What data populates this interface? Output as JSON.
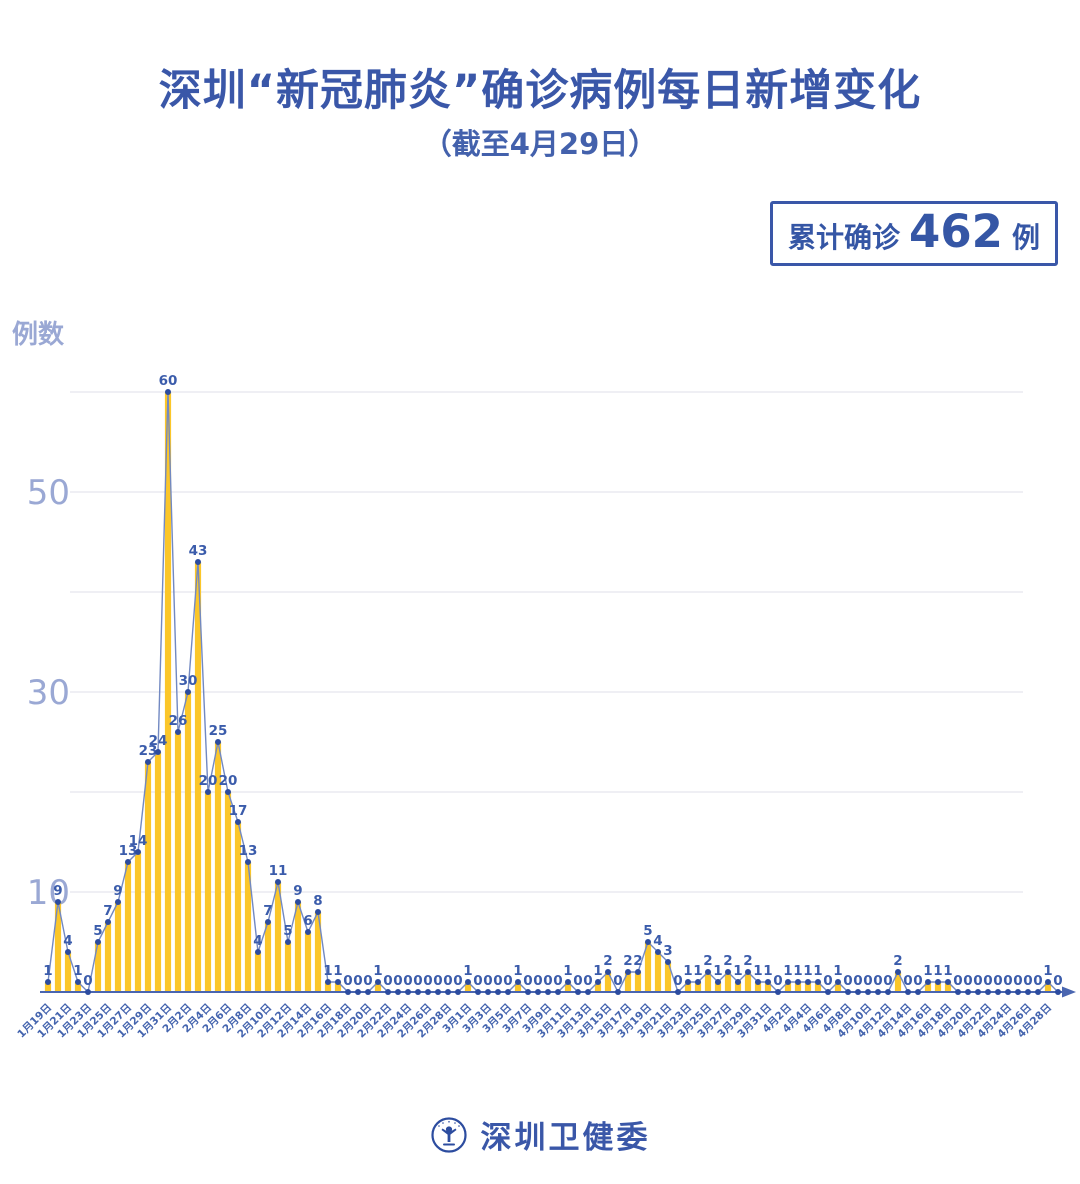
{
  "header": {
    "title": "深圳“新冠肺炎”确诊病例每日新增变化",
    "subtitle": "（截至4月29日）"
  },
  "summary_badge": {
    "prefix": "累计确诊",
    "value": "462",
    "suffix": "例"
  },
  "footer": {
    "org_name": "深圳卫健委",
    "logo": "shenzhen-health-commission-emblem"
  },
  "chart_data": {
    "type": "bar",
    "overlay": "line-with-points",
    "title": "深圳“新冠肺炎”确诊病例每日新增变化",
    "subtitle": "（截至4月29日）",
    "ylabel": "例数",
    "xlabel": "",
    "ylim": [
      0,
      60
    ],
    "grid": "horizontal",
    "gridline_values": [
      10,
      20,
      30,
      40,
      50,
      60
    ],
    "y_tick_labels": [
      10,
      30,
      50
    ],
    "x_start": "1月19日",
    "x_end": "4月29日",
    "x_label_interval": 2,
    "value_labels_shown": true,
    "x_tick_labels": [
      "1月19日",
      "1月21日",
      "1月23日",
      "1月25日",
      "1月27日",
      "1月29日",
      "1月31日",
      "2月2日",
      "2月4日",
      "2月6日",
      "2月8日",
      "2月10日",
      "2月12日",
      "2月14日",
      "2月16日",
      "2月18日",
      "2月20日",
      "2月22日",
      "2月24日",
      "2月26日",
      "2月28日",
      "3月1日",
      "3月3日",
      "3月5日",
      "3月7日",
      "3月9日",
      "3月11日",
      "3月13日",
      "3月15日",
      "3月17日",
      "3月19日",
      "3月21日",
      "3月23日",
      "3月25日",
      "3月27日",
      "3月29日",
      "3月31日",
      "4月2日",
      "4月4日",
      "4月6日",
      "4月8日",
      "4月10日",
      "4月12日",
      "4月14日",
      "4月16日",
      "4月18日",
      "4月20日",
      "4月22日",
      "4月24日",
      "4月26日",
      "4月28日"
    ],
    "values": [
      1,
      9,
      4,
      1,
      0,
      5,
      7,
      9,
      13,
      14,
      23,
      24,
      60,
      26,
      30,
      43,
      20,
      25,
      20,
      17,
      13,
      4,
      7,
      11,
      5,
      9,
      6,
      8,
      1,
      1,
      0,
      0,
      0,
      1,
      0,
      0,
      0,
      0,
      0,
      0,
      0,
      0,
      1,
      0,
      0,
      0,
      0,
      1,
      0,
      0,
      0,
      0,
      1,
      0,
      0,
      1,
      2,
      0,
      2,
      2,
      5,
      4,
      3,
      0,
      1,
      1,
      2,
      1,
      2,
      1,
      2,
      1,
      1,
      0,
      1,
      1,
      1,
      1,
      0,
      1,
      0,
      0,
      0,
      0,
      0,
      2,
      0,
      0,
      1,
      1,
      1,
      0,
      0,
      0,
      0,
      0,
      0,
      0,
      0,
      0,
      1,
      0
    ],
    "cumulative_total": 462,
    "colors": {
      "bar": "#FBC629",
      "line": "#7289C2",
      "point": "#2C4C9F",
      "value_label": "#3B5CAB",
      "x_label": "#4464AE",
      "y_label": "#9AA8D4",
      "grid": "#EAEAF0",
      "axis": "#4A66B0",
      "accent_blue": "#3A57A8"
    }
  }
}
